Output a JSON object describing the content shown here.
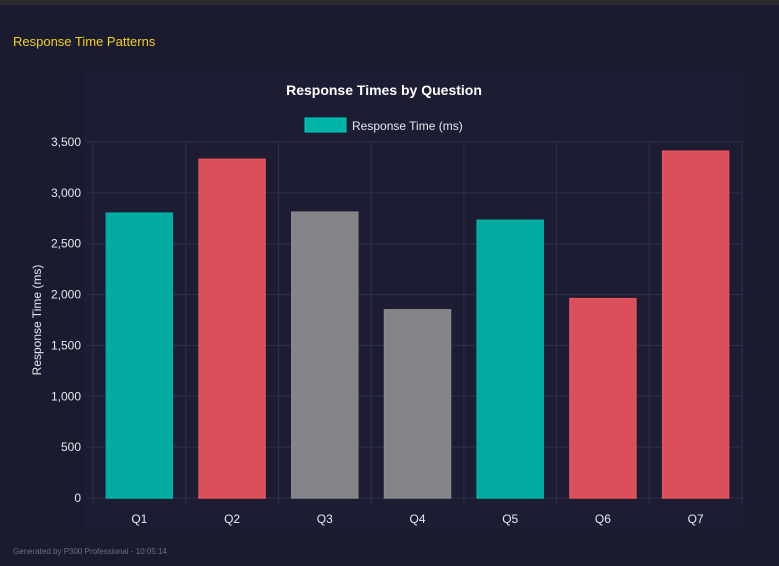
{
  "section_title": "Response Time Patterns",
  "footer": "Generated by P300 Professional - 10:05:14",
  "colors": {
    "teal": "#00b3a7",
    "red": "#e5525e",
    "gray": "#8a898c",
    "title": "#f5d020"
  },
  "chart_data": {
    "type": "bar",
    "title": "Response Times by Question",
    "legend": {
      "label": "Response Time (ms)",
      "position": "top"
    },
    "xlabel": "",
    "ylabel": "Response Time (ms)",
    "ylim": [
      0,
      3500
    ],
    "yticks": [
      "0",
      "500",
      "1,000",
      "1,500",
      "2,000",
      "2,500",
      "3,000",
      "3,500"
    ],
    "grid": true,
    "categories": [
      "Q1",
      "Q2",
      "Q3",
      "Q4",
      "Q5",
      "Q6",
      "Q7"
    ],
    "series": [
      {
        "name": "Response Time (ms)",
        "values": [
          2800,
          3330,
          2810,
          1850,
          2730,
          1960,
          3410
        ]
      }
    ],
    "bar_colors": [
      "#00b3a7",
      "#e5525e",
      "#8a898c",
      "#8a898c",
      "#00b3a7",
      "#e5525e",
      "#e5525e"
    ]
  }
}
